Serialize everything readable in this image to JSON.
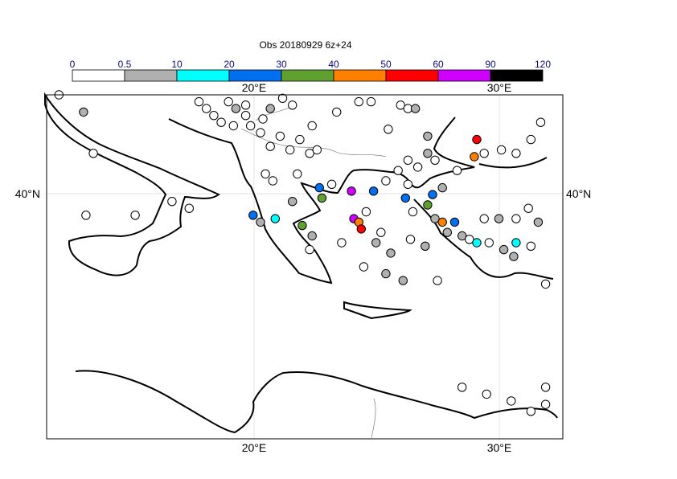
{
  "title": "Obs 20180929 6z+24",
  "legend": {
    "tick_labels": [
      "0",
      "0.5",
      "10",
      "20",
      "30",
      "40",
      "50",
      "60",
      "90",
      "120"
    ],
    "colors": [
      "#ffffff",
      "#b0b0b0",
      "#00ffff",
      "#0070f0",
      "#5fa030",
      "#ff8000",
      "#ff0000",
      "#d000ff",
      "#000000"
    ]
  },
  "axes": {
    "lon_top": [
      "20°E",
      "30°E"
    ],
    "lon_bottom": [
      "20°E",
      "30°E"
    ],
    "lat_left": "40°N",
    "lat_right": "40°N"
  },
  "map_extent": {
    "lon": [
      11.5,
      32.5
    ],
    "lat": [
      32.5,
      42.5
    ]
  },
  "observations": [
    [
      12.0,
      42.5,
      0
    ],
    [
      13.0,
      42.0,
      1
    ],
    [
      13.4,
      40.8,
      0
    ],
    [
      13.1,
      39.0,
      0
    ],
    [
      15.1,
      39.0,
      0
    ],
    [
      17.7,
      42.3,
      0
    ],
    [
      18.0,
      42.1,
      0
    ],
    [
      18.3,
      41.9,
      0
    ],
    [
      18.6,
      41.7,
      0
    ],
    [
      18.9,
      42.3,
      0
    ],
    [
      19.2,
      42.1,
      1
    ],
    [
      19.6,
      42.2,
      0
    ],
    [
      19.8,
      41.6,
      0
    ],
    [
      20.3,
      41.8,
      0
    ],
    [
      20.6,
      42.1,
      1
    ],
    [
      21.1,
      42.4,
      0
    ],
    [
      21.5,
      42.2,
      0
    ],
    [
      22.3,
      41.6,
      0
    ],
    [
      23.3,
      42.0,
      0
    ],
    [
      24.2,
      42.3,
      0
    ],
    [
      24.7,
      42.3,
      0
    ],
    [
      25.4,
      41.5,
      0
    ],
    [
      25.9,
      42.2,
      0
    ],
    [
      26.2,
      42.1,
      0
    ],
    [
      26.5,
      42.1,
      1
    ],
    [
      27.0,
      41.3,
      1
    ],
    [
      19.1,
      41.6,
      0
    ],
    [
      19.6,
      41.9,
      0
    ],
    [
      20.2,
      41.4,
      0
    ],
    [
      20.6,
      41.0,
      0
    ],
    [
      21.0,
      41.3,
      0
    ],
    [
      21.4,
      40.9,
      0
    ],
    [
      21.8,
      41.2,
      0
    ],
    [
      22.2,
      40.8,
      0
    ],
    [
      22.5,
      40.9,
      0
    ],
    [
      20.4,
      40.2,
      0
    ],
    [
      20.7,
      40.0,
      0
    ],
    [
      21.7,
      40.2,
      0
    ],
    [
      22.6,
      39.8,
      3
    ],
    [
      23.1,
      39.9,
      0
    ],
    [
      21.5,
      39.4,
      1
    ],
    [
      22.7,
      39.5,
      4
    ],
    [
      23.9,
      39.7,
      7
    ],
    [
      24.8,
      39.7,
      3
    ],
    [
      25.3,
      40.0,
      0
    ],
    [
      25.8,
      40.3,
      0
    ],
    [
      26.2,
      40.6,
      0
    ],
    [
      26.6,
      40.4,
      0
    ],
    [
      27.0,
      40.8,
      1
    ],
    [
      27.3,
      40.6,
      0
    ],
    [
      28.2,
      40.3,
      0
    ],
    [
      28.9,
      40.7,
      5
    ],
    [
      29.3,
      40.8,
      0
    ],
    [
      30.0,
      40.9,
      0
    ],
    [
      30.6,
      40.8,
      0
    ],
    [
      31.2,
      41.2,
      0
    ],
    [
      31.6,
      41.7,
      0
    ],
    [
      29.0,
      41.2,
      6
    ],
    [
      19.9,
      39.0,
      3
    ],
    [
      20.2,
      38.8,
      1
    ],
    [
      20.8,
      38.9,
      2
    ],
    [
      21.9,
      38.7,
      4
    ],
    [
      22.3,
      38.4,
      1
    ],
    [
      24.0,
      38.9,
      7
    ],
    [
      24.2,
      38.8,
      5
    ],
    [
      24.3,
      38.6,
      6
    ],
    [
      24.5,
      39.1,
      0
    ],
    [
      26.1,
      39.5,
      3
    ],
    [
      26.4,
      39.1,
      0
    ],
    [
      27.2,
      39.6,
      3
    ],
    [
      27.0,
      39.3,
      4
    ],
    [
      27.3,
      38.9,
      1
    ],
    [
      27.6,
      38.8,
      5
    ],
    [
      28.1,
      38.8,
      3
    ],
    [
      27.8,
      38.5,
      1
    ],
    [
      28.4,
      38.4,
      1
    ],
    [
      28.7,
      38.3,
      0
    ],
    [
      29.0,
      38.2,
      2
    ],
    [
      29.5,
      38.2,
      0
    ],
    [
      30.1,
      38.0,
      1
    ],
    [
      30.5,
      37.8,
      1
    ],
    [
      30.6,
      38.2,
      2
    ],
    [
      31.2,
      38.1,
      0
    ],
    [
      29.3,
      38.9,
      0
    ],
    [
      29.9,
      38.9,
      1
    ],
    [
      30.6,
      38.9,
      0
    ],
    [
      31.1,
      39.2,
      0
    ],
    [
      31.5,
      38.8,
      1
    ],
    [
      25.1,
      38.5,
      0
    ],
    [
      24.9,
      38.2,
      1
    ],
    [
      26.3,
      38.3,
      0
    ],
    [
      26.9,
      38.1,
      1
    ],
    [
      25.5,
      37.9,
      1
    ],
    [
      27.4,
      37.1,
      0
    ],
    [
      24.4,
      37.5,
      0
    ],
    [
      25.3,
      37.3,
      1
    ],
    [
      26.0,
      37.1,
      1
    ],
    [
      31.8,
      37.0,
      0
    ],
    [
      31.8,
      34.0,
      0
    ],
    [
      31.8,
      33.5,
      0
    ],
    [
      28.4,
      34.0,
      0
    ],
    [
      29.4,
      33.8,
      0
    ],
    [
      30.4,
      33.6,
      0
    ],
    [
      31.2,
      33.3,
      0
    ],
    [
      16.6,
      39.4,
      0
    ],
    [
      17.3,
      39.2,
      0
    ],
    [
      22.2,
      38.0,
      0
    ],
    [
      23.5,
      38.2,
      0
    ],
    [
      26.2,
      39.9,
      0
    ],
    [
      27.6,
      39.8,
      1
    ]
  ]
}
